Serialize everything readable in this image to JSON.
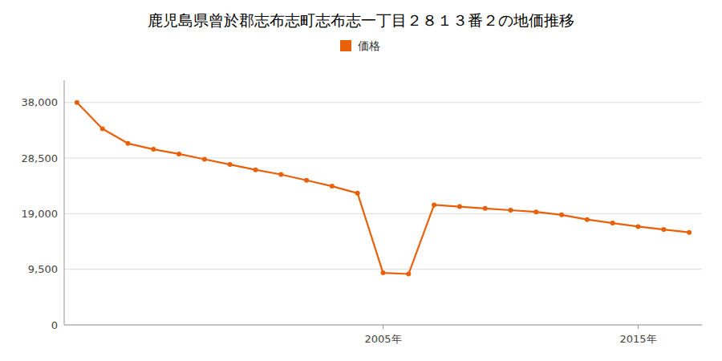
{
  "chart_data": {
    "type": "line",
    "title": "鹿児島県曾於郡志布志町志布志一丁目２８１３番２の地価推移",
    "x": [
      1993,
      1994,
      1995,
      1996,
      1997,
      1998,
      1999,
      2000,
      2001,
      2002,
      2003,
      2004,
      2005,
      2006,
      2007,
      2008,
      2009,
      2010,
      2011,
      2012,
      2013,
      2014,
      2015,
      2016,
      2017
    ],
    "series": [
      {
        "name": "価格",
        "color": "#E8610A",
        "marker": "circle",
        "values": [
          38000,
          33500,
          31000,
          30000,
          29200,
          28300,
          27400,
          26500,
          25700,
          24700,
          23700,
          22500,
          8900,
          8700,
          20500,
          20200,
          19900,
          19600,
          19300,
          18800,
          18000,
          17400,
          16800,
          16300,
          15800
        ]
      }
    ],
    "xlim": [
      1992.5,
      2017.5
    ],
    "xticks": [
      {
        "value": 2005,
        "label": "2005年"
      },
      {
        "value": 2015,
        "label": "2015年"
      }
    ],
    "ylim": [
      0,
      41800
    ],
    "yticks": [
      0,
      {
        "value": 9500,
        "label": "9,500"
      },
      {
        "value": 19000,
        "label": "19,000"
      },
      {
        "value": 28500,
        "label": "28,500"
      },
      {
        "value": 38000,
        "label": "38,000"
      }
    ],
    "grid": true,
    "legend": "top"
  }
}
